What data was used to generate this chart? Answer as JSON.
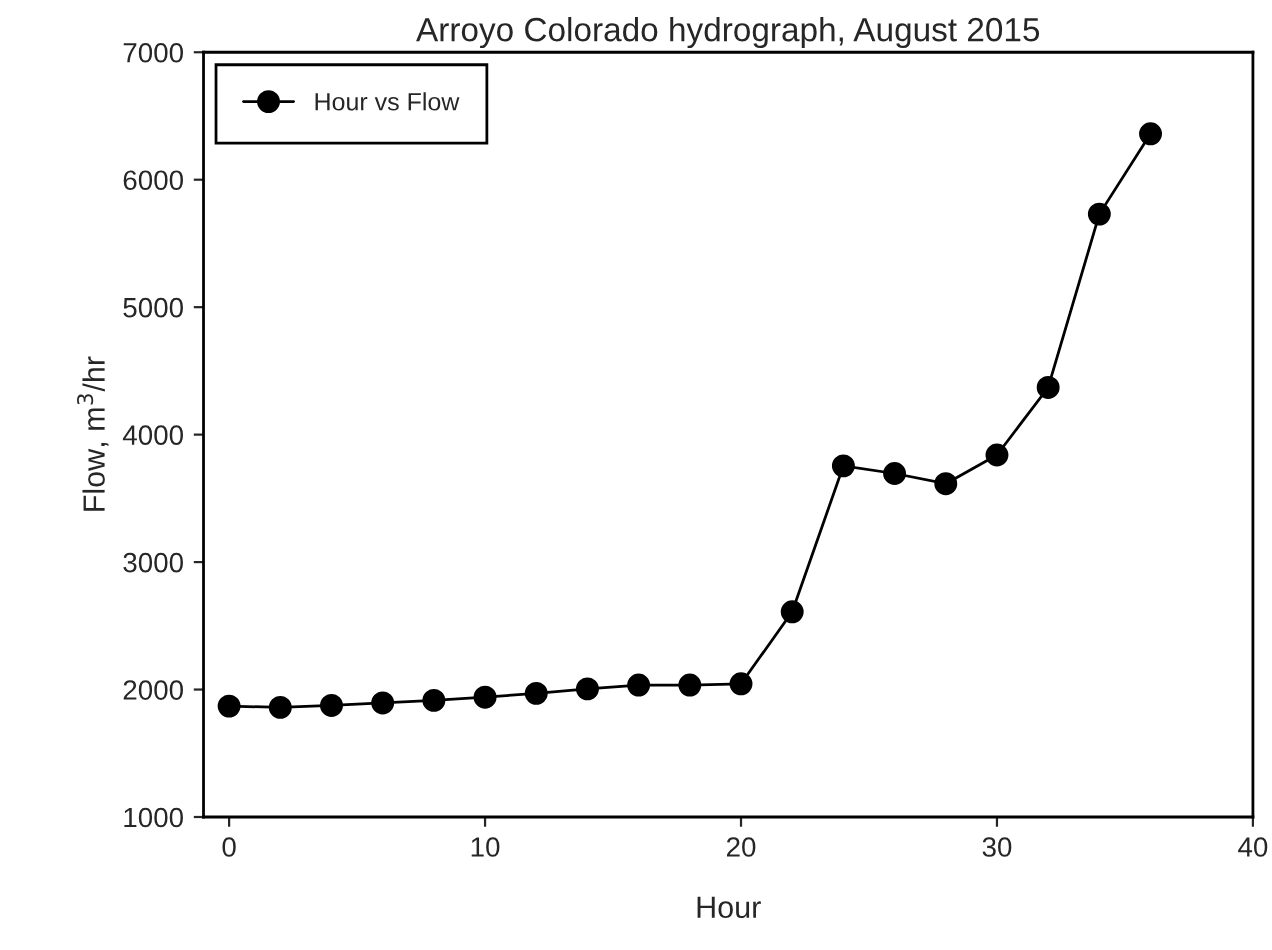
{
  "chart_data": {
    "type": "line",
    "title": "Arroyo Colorado hydrograph, August 2015",
    "xlabel": "Hour",
    "ylabel": "Flow, m$^{3}$/hr",
    "x": [
      0,
      2,
      4,
      6,
      8,
      10,
      12,
      14,
      16,
      18,
      20,
      22,
      24,
      26,
      28,
      30,
      32,
      34,
      36
    ],
    "series": [
      {
        "name": "Hour vs Flow",
        "color": "#000000",
        "values": [
          1870,
          1860,
          1875,
          1895,
          1915,
          1940,
          1970,
          2005,
          2035,
          2035,
          2045,
          2610,
          3755,
          3695,
          3615,
          3840,
          4370,
          5730,
          6360
        ]
      }
    ],
    "xlim": [
      -1,
      40
    ],
    "xticks": [
      0,
      10,
      20,
      30,
      40
    ],
    "ylim": [
      1000,
      7000
    ],
    "yticks": [
      1000,
      2000,
      3000,
      4000,
      5000,
      6000,
      7000
    ],
    "grid": false,
    "legend": "top left",
    "marker": "circle",
    "line_style": "solid"
  }
}
